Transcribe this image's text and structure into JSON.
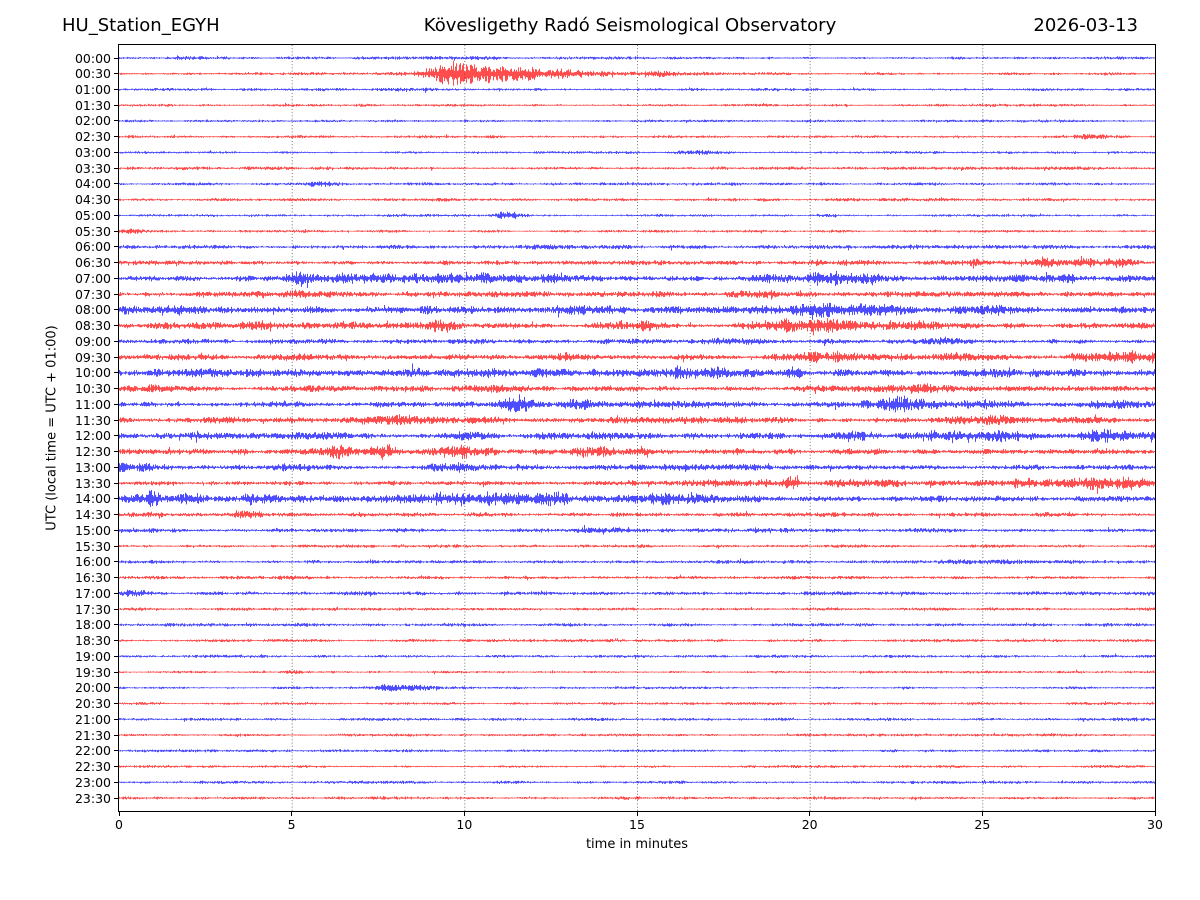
{
  "chart_data": {
    "type": "line",
    "subtype": "helicorder-day-plot",
    "title_left": "HU_Station_EGYH",
    "title_center": "Kövesligethy Radó Seismological Observatory",
    "title_right": "2026-03-13",
    "xlabel": "time in minutes",
    "ylabel": "UTC (local time = UTC + 01:00)",
    "x_range": [
      0,
      30
    ],
    "x_ticks": [
      0,
      5,
      10,
      15,
      20,
      25,
      30
    ],
    "grid_minutes": [
      5,
      10,
      15,
      20,
      25
    ],
    "minutes_per_row": 30,
    "colors": {
      "blue": "#0000ff",
      "red": "#ff0000",
      "grid": "#4d4d4d",
      "frame": "#000000",
      "text": "#000000"
    },
    "event_schema": [
      "center_minute",
      "sigma_minutes",
      "amplitude_px"
    ],
    "rows": [
      {
        "label": "00:00",
        "color": "blue",
        "base": 1.1,
        "events": [
          [
            2.8,
            0.8,
            0.6
          ],
          [
            9.5,
            1.0,
            0.5
          ]
        ]
      },
      {
        "label": "00:30",
        "color": "red",
        "base": 1.0,
        "events": [
          [
            9.7,
            0.5,
            5.5
          ],
          [
            10.8,
            1.0,
            4.0
          ],
          [
            12.8,
            2.0,
            2.0
          ],
          [
            16.0,
            1.5,
            0.8
          ]
        ]
      },
      {
        "label": "01:00",
        "color": "blue",
        "base": 1.0,
        "events": [
          [
            7.5,
            1.0,
            0.4
          ]
        ]
      },
      {
        "label": "01:30",
        "color": "red",
        "base": 1.0,
        "events": []
      },
      {
        "label": "02:00",
        "color": "blue",
        "base": 0.95,
        "events": []
      },
      {
        "label": "02:30",
        "color": "red",
        "base": 1.0,
        "events": [
          [
            28.4,
            0.5,
            1.6
          ]
        ]
      },
      {
        "label": "03:00",
        "color": "blue",
        "base": 0.95,
        "events": [
          [
            16.8,
            0.5,
            0.8
          ]
        ]
      },
      {
        "label": "03:30",
        "color": "red",
        "base": 1.2,
        "events": []
      },
      {
        "label": "04:00",
        "color": "blue",
        "base": 1.1,
        "events": [
          [
            5.8,
            0.6,
            0.8
          ]
        ]
      },
      {
        "label": "04:30",
        "color": "red",
        "base": 1.15,
        "events": []
      },
      {
        "label": "05:00",
        "color": "blue",
        "base": 1.0,
        "events": [
          [
            11.3,
            0.25,
            2.2
          ]
        ]
      },
      {
        "label": "05:30",
        "color": "red",
        "base": 1.0,
        "events": [
          [
            0.5,
            0.5,
            0.8
          ]
        ]
      },
      {
        "label": "06:00",
        "color": "blue",
        "base": 1.6,
        "events": []
      },
      {
        "label": "06:30",
        "color": "red",
        "base": 1.7,
        "events": [
          [
            21.0,
            0.5,
            1.5
          ],
          [
            24.3,
            0.4,
            2.5
          ],
          [
            27.0,
            0.8,
            2.8
          ],
          [
            28.7,
            0.4,
            2.2
          ]
        ]
      },
      {
        "label": "07:00",
        "color": "blue",
        "base": 2.2,
        "events": [
          [
            5.3,
            0.3,
            3.5
          ],
          [
            7.0,
            1.2,
            3.0
          ],
          [
            9.5,
            1.0,
            3.0
          ],
          [
            12.0,
            1.0,
            1.5
          ],
          [
            20.5,
            1.0,
            3.2
          ],
          [
            21.8,
            0.4,
            3.0
          ],
          [
            27.0,
            0.6,
            1.5
          ]
        ]
      },
      {
        "label": "07:30",
        "color": "red",
        "base": 2.0,
        "events": [
          [
            4.5,
            0.8,
            1.2
          ],
          [
            13.0,
            1.0,
            1.0
          ],
          [
            19.0,
            0.8,
            1.2
          ]
        ]
      },
      {
        "label": "08:00",
        "color": "blue",
        "base": 2.4,
        "events": [
          [
            1.0,
            0.8,
            2.0
          ],
          [
            10.0,
            0.8,
            1.5
          ],
          [
            13.5,
            0.8,
            1.5
          ],
          [
            21.0,
            1.2,
            3.5
          ],
          [
            25.0,
            0.5,
            3.0
          ]
        ]
      },
      {
        "label": "08:30",
        "color": "red",
        "base": 2.2,
        "events": [
          [
            3.5,
            0.8,
            2.5
          ],
          [
            4.1,
            0.25,
            3.5
          ],
          [
            6.2,
            0.5,
            2.0
          ],
          [
            9.3,
            0.4,
            2.0
          ],
          [
            15.0,
            0.5,
            2.0
          ],
          [
            19.8,
            1.0,
            3.0
          ],
          [
            23.0,
            0.5,
            1.5
          ]
        ]
      },
      {
        "label": "09:00",
        "color": "blue",
        "base": 1.8,
        "events": [
          [
            17.5,
            0.5,
            1.2
          ],
          [
            21.0,
            0.5,
            1.2
          ],
          [
            24.0,
            0.8,
            1.5
          ]
        ]
      },
      {
        "label": "09:30",
        "color": "red",
        "base": 2.2,
        "events": [
          [
            5.5,
            0.5,
            1.5
          ],
          [
            13.2,
            0.5,
            1.5
          ],
          [
            20.5,
            0.8,
            2.5
          ],
          [
            23.5,
            0.7,
            2.0
          ],
          [
            29.0,
            1.0,
            2.5
          ]
        ]
      },
      {
        "label": "10:00",
        "color": "blue",
        "base": 2.8,
        "events": [
          [
            2.0,
            0.8,
            2.0
          ],
          [
            10.8,
            1.2,
            2.5
          ],
          [
            16.5,
            0.8,
            2.0
          ],
          [
            19.6,
            0.15,
            4.0
          ],
          [
            27.0,
            1.0,
            1.5
          ]
        ]
      },
      {
        "label": "10:30",
        "color": "red",
        "base": 2.2,
        "events": [
          [
            0.5,
            0.5,
            1.2
          ],
          [
            10.5,
            0.8,
            1.5
          ],
          [
            23.5,
            0.8,
            1.5
          ]
        ]
      },
      {
        "label": "11:00",
        "color": "blue",
        "base": 2.2,
        "events": [
          [
            11.5,
            0.3,
            4.5
          ],
          [
            13.3,
            0.3,
            2.5
          ],
          [
            16.0,
            1.0,
            1.5
          ],
          [
            22.8,
            0.8,
            4.0
          ],
          [
            25.0,
            0.4,
            2.5
          ],
          [
            28.8,
            0.5,
            1.5
          ]
        ]
      },
      {
        "label": "11:30",
        "color": "red",
        "base": 2.2,
        "events": [
          [
            3.1,
            0.3,
            3.0
          ],
          [
            8.5,
            1.0,
            1.5
          ],
          [
            17.0,
            1.0,
            1.2
          ],
          [
            25.0,
            1.0,
            1.2
          ]
        ]
      },
      {
        "label": "12:00",
        "color": "blue",
        "base": 2.4,
        "events": [
          [
            9.8,
            0.5,
            1.5
          ],
          [
            21.0,
            0.5,
            1.5
          ],
          [
            23.8,
            0.4,
            2.5
          ],
          [
            25.6,
            0.7,
            3.5
          ],
          [
            28.6,
            0.5,
            2.5
          ]
        ]
      },
      {
        "label": "12:30",
        "color": "red",
        "base": 2.2,
        "events": [
          [
            6.3,
            0.6,
            3.0
          ],
          [
            7.6,
            0.3,
            4.0
          ],
          [
            9.8,
            0.5,
            2.5
          ],
          [
            14.0,
            0.8,
            1.5
          ]
        ]
      },
      {
        "label": "13:00",
        "color": "blue",
        "base": 2.2,
        "events": [
          [
            0.7,
            0.7,
            2.5
          ],
          [
            5.0,
            0.8,
            1.2
          ],
          [
            10.0,
            0.8,
            1.2
          ]
        ]
      },
      {
        "label": "13:30",
        "color": "red",
        "base": 1.8,
        "events": [
          [
            17.8,
            0.8,
            2.5
          ],
          [
            19.45,
            0.15,
            5.0
          ],
          [
            21.5,
            0.8,
            2.5
          ],
          [
            24.0,
            0.8,
            2.0
          ],
          [
            26.0,
            0.5,
            2.0
          ],
          [
            28.8,
            1.0,
            3.5
          ]
        ]
      },
      {
        "label": "14:00",
        "color": "blue",
        "base": 2.2,
        "events": [
          [
            0.5,
            0.3,
            3.0
          ],
          [
            0.95,
            0.12,
            6.5
          ],
          [
            2.0,
            0.5,
            2.5
          ],
          [
            3.8,
            0.5,
            2.5
          ],
          [
            6.0,
            0.8,
            2.0
          ],
          [
            9.0,
            1.0,
            3.0
          ],
          [
            12.0,
            1.2,
            3.0
          ],
          [
            15.8,
            1.0,
            3.0
          ]
        ]
      },
      {
        "label": "14:30",
        "color": "red",
        "base": 1.6,
        "events": [
          [
            0.8,
            0.5,
            1.5
          ],
          [
            3.5,
            0.3,
            2.5
          ]
        ]
      },
      {
        "label": "15:00",
        "color": "blue",
        "base": 1.5,
        "events": [
          [
            0.5,
            0.5,
            1.5
          ],
          [
            13.8,
            0.5,
            1.2
          ],
          [
            19.0,
            0.5,
            1.0
          ]
        ]
      },
      {
        "label": "15:30",
        "color": "red",
        "base": 1.2,
        "events": []
      },
      {
        "label": "16:00",
        "color": "blue",
        "base": 1.3,
        "events": [
          [
            25.0,
            1.0,
            0.5
          ]
        ]
      },
      {
        "label": "16:30",
        "color": "red",
        "base": 1.3,
        "events": [
          [
            6.0,
            0.8,
            0.5
          ]
        ]
      },
      {
        "label": "17:00",
        "color": "blue",
        "base": 1.4,
        "events": [
          [
            0.3,
            0.4,
            1.2
          ]
        ]
      },
      {
        "label": "17:30",
        "color": "red",
        "base": 1.1,
        "events": []
      },
      {
        "label": "18:00",
        "color": "blue",
        "base": 1.2,
        "events": [
          [
            5.3,
            0.3,
            1.0
          ]
        ]
      },
      {
        "label": "18:30",
        "color": "red",
        "base": 1.1,
        "events": []
      },
      {
        "label": "19:00",
        "color": "blue",
        "base": 1.1,
        "events": []
      },
      {
        "label": "19:30",
        "color": "red",
        "base": 1.0,
        "events": [
          [
            5.2,
            0.4,
            0.8
          ]
        ]
      },
      {
        "label": "20:00",
        "color": "blue",
        "base": 1.0,
        "events": [
          [
            7.6,
            0.3,
            2.2
          ],
          [
            8.6,
            0.8,
            1.0
          ]
        ]
      },
      {
        "label": "20:30",
        "color": "red",
        "base": 1.0,
        "events": []
      },
      {
        "label": "21:00",
        "color": "blue",
        "base": 1.1,
        "events": [
          [
            29.5,
            0.5,
            0.8
          ]
        ]
      },
      {
        "label": "21:30",
        "color": "red",
        "base": 1.0,
        "events": []
      },
      {
        "label": "22:00",
        "color": "blue",
        "base": 1.0,
        "events": []
      },
      {
        "label": "22:30",
        "color": "red",
        "base": 1.0,
        "events": []
      },
      {
        "label": "23:00",
        "color": "blue",
        "base": 1.1,
        "events": [
          [
            8.4,
            0.4,
            0.8
          ]
        ]
      },
      {
        "label": "23:30",
        "color": "red",
        "base": 1.1,
        "events": [
          [
            14.8,
            0.4,
            1.0
          ]
        ]
      }
    ]
  }
}
